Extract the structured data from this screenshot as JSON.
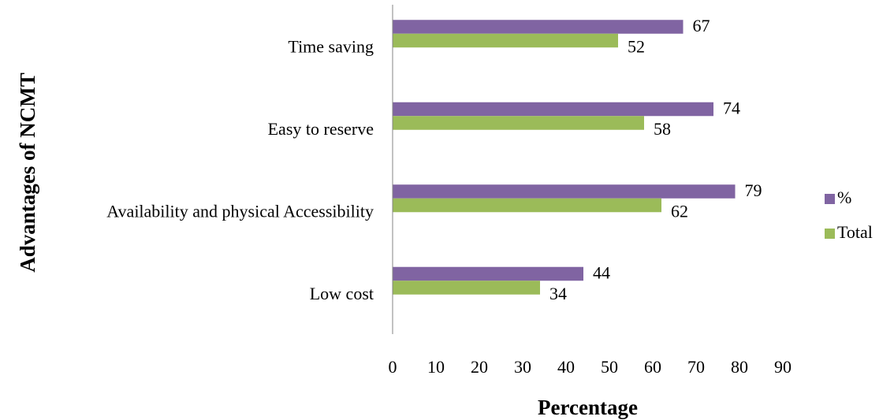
{
  "chart_data": {
    "type": "bar",
    "orientation": "horizontal",
    "title": "",
    "xlabel": "Percentage",
    "ylabel": "Advantages of NCMT",
    "categories": [
      "Time saving",
      "Easy to reserve",
      "Availability and physical Accessibility",
      "Low cost"
    ],
    "series": [
      {
        "name": "%",
        "values": [
          67,
          74,
          79,
          44
        ],
        "color": "#8064a2"
      },
      {
        "name": "Total",
        "values": [
          52,
          58,
          62,
          34
        ],
        "color": "#9bbb59"
      }
    ],
    "xlim": [
      0,
      90
    ],
    "xticks": [
      0,
      10,
      20,
      30,
      40,
      50,
      60,
      70,
      80,
      90
    ],
    "grid": false,
    "legend_position": "right"
  }
}
